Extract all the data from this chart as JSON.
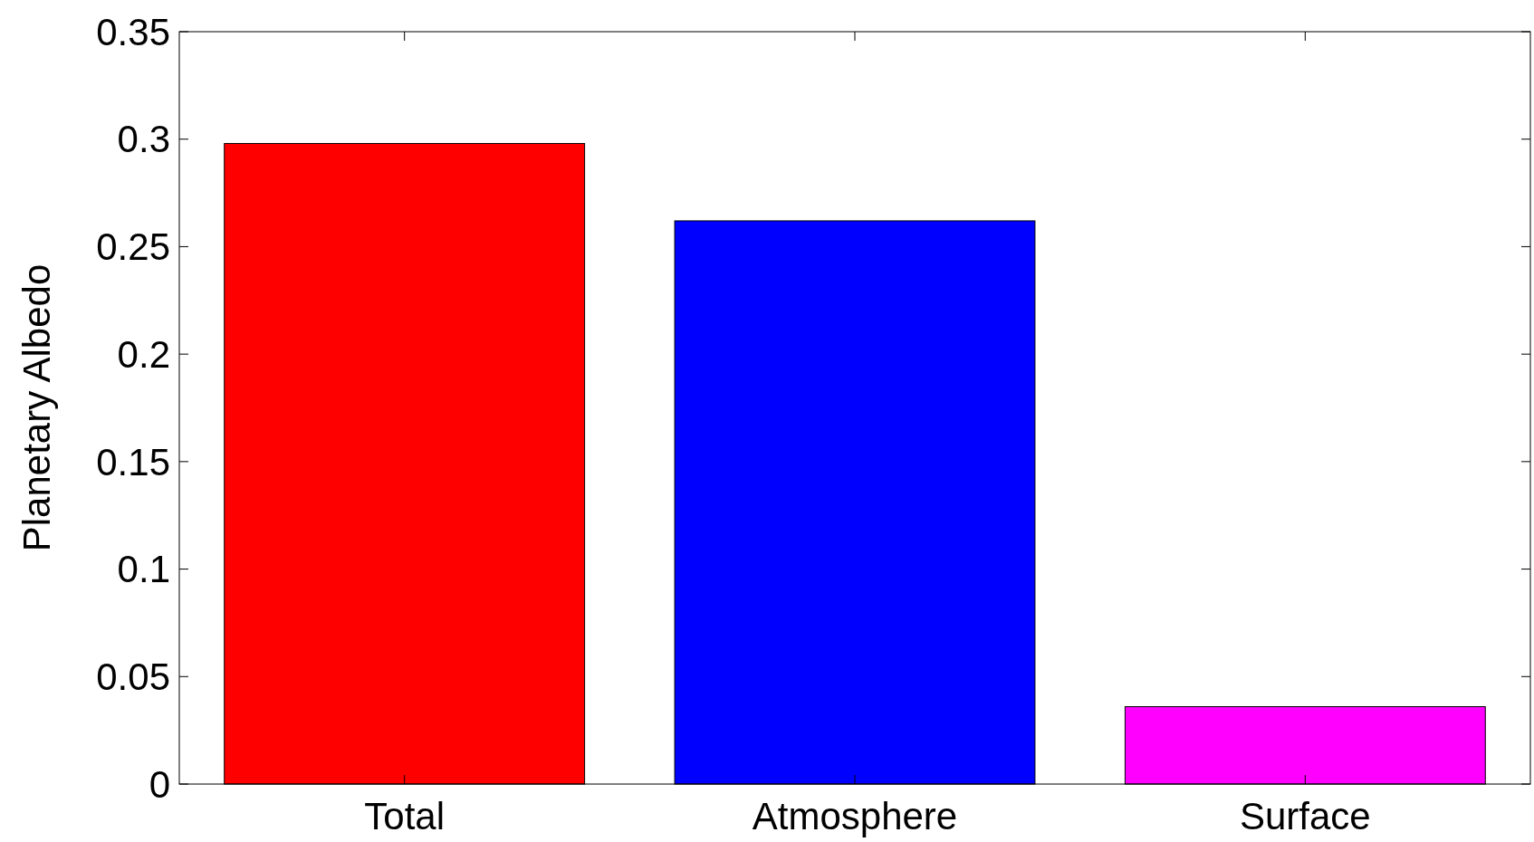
{
  "chart_data": {
    "type": "bar",
    "ylabel": "Planetary Albedo",
    "categories": [
      "Total",
      "Atmosphere",
      "Surface"
    ],
    "values": [
      0.298,
      0.262,
      0.036
    ],
    "colors": [
      "#ff0000",
      "#0000ff",
      "#ff00ff"
    ],
    "ylim": [
      0,
      0.35
    ],
    "yticks": [
      0,
      0.05,
      {
        "value": 0.1,
        "label": "0.1"
      },
      0.15,
      {
        "value": 0.2,
        "label": "0.2"
      },
      0.25,
      {
        "value": 0.3,
        "label": "0.3"
      },
      0.35
    ],
    "grid": false
  }
}
